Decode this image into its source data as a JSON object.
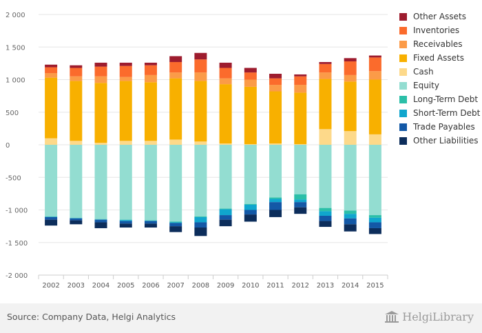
{
  "chart_data": {
    "type": "bar",
    "stacked": true,
    "categories": [
      "2002",
      "2003",
      "2004",
      "2005",
      "2006",
      "2007",
      "2008",
      "2009",
      "2010",
      "2011",
      "2012",
      "2013",
      "2014",
      "2015"
    ],
    "ylim": [
      -2000,
      2000
    ],
    "y_ticks": [
      "2 000",
      "1 500",
      "1 000",
      "500",
      "0",
      "-500",
      "-1 000",
      "-1 500",
      "-2 000"
    ],
    "grid": true,
    "legend_position": "right",
    "series": [
      {
        "name": "Cash",
        "color": "#fdd98a",
        "values": [
          100,
          60,
          30,
          60,
          60,
          80,
          50,
          20,
          10,
          20,
          10,
          240,
          210,
          160
        ]
      },
      {
        "name": "Fixed Assets",
        "color": "#f8b000",
        "values": [
          930,
          920,
          920,
          920,
          900,
          940,
          930,
          910,
          880,
          800,
          790,
          770,
          760,
          840
        ]
      },
      {
        "name": "Receivables",
        "color": "#fb9b48",
        "values": [
          70,
          70,
          100,
          60,
          110,
          90,
          130,
          90,
          110,
          100,
          120,
          100,
          100,
          130
        ]
      },
      {
        "name": "Inventories",
        "color": "#fb6b2c",
        "values": [
          90,
          130,
          150,
          170,
          150,
          160,
          200,
          160,
          110,
          100,
          130,
          130,
          210,
          210
        ]
      },
      {
        "name": "Other Assets",
        "color": "#9d1c2e",
        "values": [
          40,
          40,
          60,
          50,
          40,
          90,
          100,
          80,
          70,
          70,
          30,
          30,
          50,
          30
        ]
      },
      {
        "name": "Equity",
        "color": "#93ddd1",
        "values": [
          -1100,
          -1120,
          -1140,
          -1150,
          -1160,
          -1180,
          -1100,
          -980,
          -910,
          -810,
          -760,
          -970,
          -1010,
          -1080
        ]
      },
      {
        "name": "Long-Term Debt",
        "color": "#2bbfa8",
        "values": [
          -5,
          -5,
          -5,
          -5,
          -5,
          -10,
          -10,
          -10,
          -10,
          -20,
          -80,
          -50,
          -50,
          -40
        ]
      },
      {
        "name": "Short-Term Debt",
        "color": "#10a6cd",
        "values": [
          -5,
          -5,
          -5,
          -15,
          -5,
          -10,
          -80,
          -90,
          -80,
          -50,
          -40,
          -70,
          -70,
          -70
        ]
      },
      {
        "name": "Trade Payables",
        "color": "#1358a6",
        "values": [
          -40,
          -30,
          -40,
          -40,
          -40,
          -50,
          -80,
          -70,
          -70,
          -120,
          -80,
          -80,
          -90,
          -90
        ]
      },
      {
        "name": "Other Liabilities",
        "color": "#0c2d5b",
        "values": [
          -90,
          -60,
          -90,
          -60,
          -60,
          -90,
          -130,
          -100,
          -110,
          -110,
          -100,
          -90,
          -110,
          -90
        ]
      }
    ],
    "legend_order": [
      "Other Assets",
      "Inventories",
      "Receivables",
      "Fixed Assets",
      "Cash",
      "Equity",
      "Long-Term Debt",
      "Short-Term Debt",
      "Trade Payables",
      "Other Liabilities"
    ]
  },
  "footer": {
    "source": "Source: Company Data, Helgi Analytics",
    "logo_text": "HelgiLibrary"
  },
  "colors": {
    "grid": "#e6e6e6",
    "footer_bg": "#f2f2f2"
  }
}
